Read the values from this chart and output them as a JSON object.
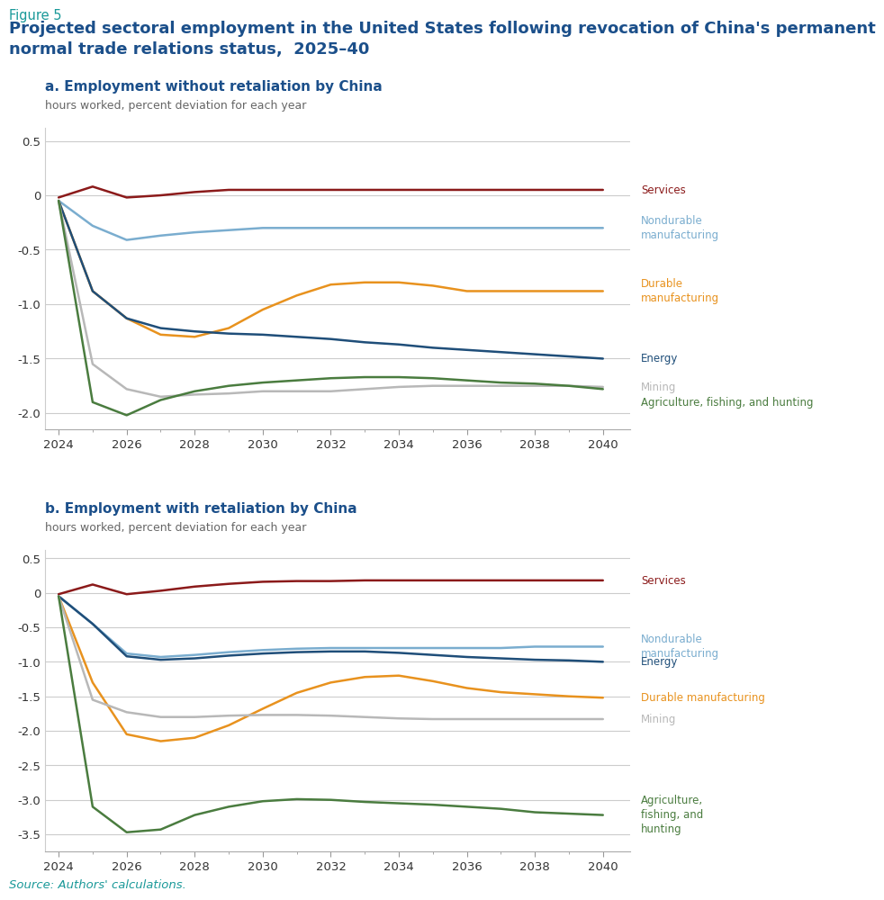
{
  "figure_label": "Figure 5",
  "title": "Projected sectoral employment in the United States following revocation of China's permanent\nnormal trade relations status,  2025–40",
  "title_color": "#1b4f8a",
  "figure_label_color": "#1a9999",
  "panel_a_title": "a. Employment without retaliation by China",
  "panel_b_title": "b. Employment with retaliation by China",
  "panel_subtitle": "hours worked, percent deviation for each year",
  "source_text": "Source: Authors' calculations.",
  "years": [
    2024,
    2025,
    2026,
    2027,
    2028,
    2029,
    2030,
    2031,
    2032,
    2033,
    2034,
    2035,
    2036,
    2037,
    2038,
    2039,
    2040
  ],
  "panel_a": {
    "Services": [
      -0.02,
      0.08,
      -0.02,
      0.0,
      0.03,
      0.05,
      0.05,
      0.05,
      0.05,
      0.05,
      0.05,
      0.05,
      0.05,
      0.05,
      0.05,
      0.05,
      0.05
    ],
    "Nondurable manufacturing": [
      -0.05,
      -0.28,
      -0.41,
      -0.37,
      -0.34,
      -0.32,
      -0.3,
      -0.3,
      -0.3,
      -0.3,
      -0.3,
      -0.3,
      -0.3,
      -0.3,
      -0.3,
      -0.3,
      -0.3
    ],
    "Durable manufacturing": [
      -0.05,
      -0.88,
      -1.13,
      -1.28,
      -1.3,
      -1.22,
      -1.05,
      -0.92,
      -0.82,
      -0.8,
      -0.8,
      -0.83,
      -0.88,
      -0.88,
      -0.88,
      -0.88,
      -0.88
    ],
    "Energy": [
      -0.05,
      -0.88,
      -1.13,
      -1.22,
      -1.25,
      -1.27,
      -1.28,
      -1.3,
      -1.32,
      -1.35,
      -1.37,
      -1.4,
      -1.42,
      -1.44,
      -1.46,
      -1.48,
      -1.5
    ],
    "Mining": [
      -0.05,
      -1.55,
      -1.78,
      -1.85,
      -1.83,
      -1.82,
      -1.8,
      -1.8,
      -1.8,
      -1.78,
      -1.76,
      -1.75,
      -1.75,
      -1.75,
      -1.75,
      -1.75,
      -1.76
    ],
    "Agriculture, fishing, and hunting": [
      -0.05,
      -1.9,
      -2.02,
      -1.88,
      -1.8,
      -1.75,
      -1.72,
      -1.7,
      -1.68,
      -1.67,
      -1.67,
      -1.68,
      -1.7,
      -1.72,
      -1.73,
      -1.75,
      -1.78
    ]
  },
  "panel_b": {
    "Services": [
      -0.02,
      0.12,
      -0.02,
      0.03,
      0.09,
      0.13,
      0.16,
      0.17,
      0.17,
      0.18,
      0.18,
      0.18,
      0.18,
      0.18,
      0.18,
      0.18,
      0.18
    ],
    "Nondurable manufacturing": [
      -0.05,
      -0.45,
      -0.88,
      -0.93,
      -0.9,
      -0.86,
      -0.83,
      -0.81,
      -0.8,
      -0.8,
      -0.8,
      -0.8,
      -0.8,
      -0.8,
      -0.78,
      -0.78,
      -0.78
    ],
    "Durable manufacturing": [
      -0.05,
      -1.3,
      -2.05,
      -2.15,
      -2.1,
      -1.92,
      -1.68,
      -1.45,
      -1.3,
      -1.22,
      -1.2,
      -1.28,
      -1.38,
      -1.44,
      -1.47,
      -1.5,
      -1.52
    ],
    "Energy": [
      -0.05,
      -0.45,
      -0.92,
      -0.97,
      -0.95,
      -0.91,
      -0.88,
      -0.86,
      -0.85,
      -0.85,
      -0.87,
      -0.9,
      -0.93,
      -0.95,
      -0.97,
      -0.98,
      -1.0
    ],
    "Mining": [
      -0.05,
      -1.55,
      -1.73,
      -1.8,
      -1.8,
      -1.78,
      -1.77,
      -1.77,
      -1.78,
      -1.8,
      -1.82,
      -1.83,
      -1.83,
      -1.83,
      -1.83,
      -1.83,
      -1.83
    ],
    "Agriculture, fishing, and hunting": [
      -0.05,
      -3.1,
      -3.47,
      -3.43,
      -3.22,
      -3.1,
      -3.02,
      -2.99,
      -3.0,
      -3.03,
      -3.05,
      -3.07,
      -3.1,
      -3.13,
      -3.18,
      -3.2,
      -3.22
    ]
  },
  "colors": {
    "Services": "#8b1a1a",
    "Nondurable manufacturing": "#7aadcf",
    "Durable manufacturing": "#e8921e",
    "Energy": "#1f4e79",
    "Mining": "#b8b8b8",
    "Agriculture, fishing, and hunting": "#4a7c3f"
  },
  "panel_a_ylim": [
    -2.15,
    0.62
  ],
  "panel_a_yticks": [
    0.5,
    0.0,
    -0.5,
    -1.0,
    -1.5,
    -2.0
  ],
  "panel_b_ylim": [
    -3.75,
    0.62
  ],
  "panel_b_yticks": [
    0.5,
    0.0,
    -0.5,
    -1.0,
    -1.5,
    -2.0,
    -2.5,
    -3.0,
    -3.5
  ],
  "xticks": [
    2024,
    2026,
    2028,
    2030,
    2032,
    2034,
    2036,
    2038,
    2040
  ],
  "xlim": [
    2023.6,
    2040.8
  ],
  "panel_a_labels": {
    "Services": [
      0.05,
      "Services"
    ],
    "Nondurable manufacturing": [
      -0.3,
      "Nondurable\nmanufacturing"
    ],
    "Durable manufacturing": [
      -0.88,
      "Durable\nmanufacturing"
    ],
    "Energy": [
      -1.5,
      "Energy"
    ],
    "Mining": [
      -1.76,
      "Mining"
    ],
    "Agriculture, fishing, and hunting": [
      -1.9,
      "Agriculture, fishing, and hunting"
    ]
  },
  "panel_b_labels": {
    "Services": [
      0.18,
      "Services"
    ],
    "Nondurable manufacturing": [
      -0.78,
      "Nondurable\nmanufacturing"
    ],
    "Energy": [
      -1.0,
      "Energy"
    ],
    "Durable manufacturing": [
      -1.52,
      "Durable manufacturing"
    ],
    "Mining": [
      -1.83,
      "Mining"
    ],
    "Agriculture, fishing, and hunting": [
      -3.22,
      "Agriculture,\nfishing, and\nhunting"
    ]
  }
}
